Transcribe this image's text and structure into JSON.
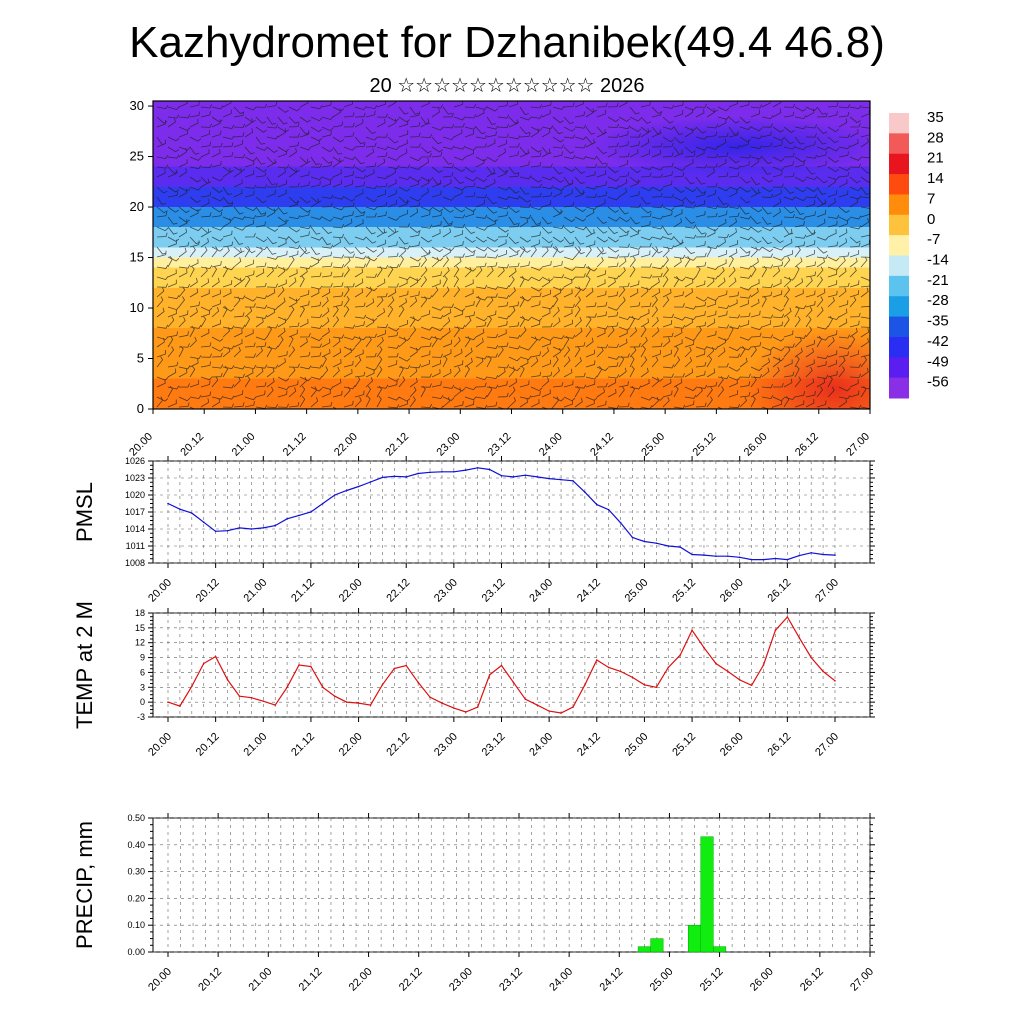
{
  "title": "Kazhydromet for Dzhanibek(49.4 46.8)",
  "subtitle": "20 ☆☆☆☆☆☆☆☆☆☆☆ 2026",
  "time_labels": [
    "20.00",
    "20.12",
    "21.00",
    "21.12",
    "22.00",
    "22.12",
    "23.00",
    "23.12",
    "24.00",
    "24.12",
    "25.00",
    "25.12",
    "26.00",
    "26.12",
    "27.00"
  ],
  "chart_data": [
    {
      "type": "heatmap",
      "title": "Temperature cross-section with wind barbs",
      "ylabel": "",
      "ylim": [
        0,
        30
      ],
      "yticks": [
        0,
        5,
        10,
        15,
        20,
        25,
        30
      ],
      "xlabels_ref": "time_labels",
      "colorbar_labels": [
        "35",
        "28",
        "21",
        "14",
        "7",
        "0",
        "-7",
        "-14",
        "-21",
        "-28",
        "-35",
        "-42",
        "-49",
        "-56"
      ],
      "colorbar_colors": [
        "#f9c8c8",
        "#f25a5a",
        "#e8141e",
        "#ff4a10",
        "#ff8c0a",
        "#ffc23c",
        "#fff2a8",
        "#c6eaf5",
        "#5cc3ef",
        "#1a9fe6",
        "#1c55e6",
        "#2a2df2",
        "#5a1ef0",
        "#8a2fe6"
      ],
      "layers": [
        {
          "ymin": 0,
          "ymax": 3,
          "color": "#ff7a10"
        },
        {
          "ymin": 3,
          "ymax": 8,
          "color": "#ff9a18"
        },
        {
          "ymin": 8,
          "ymax": 12,
          "color": "#ffb22a"
        },
        {
          "ymin": 12,
          "ymax": 14,
          "color": "#ffd450"
        },
        {
          "ymin": 14,
          "ymax": 15,
          "color": "#fff0a0"
        },
        {
          "ymin": 15,
          "ymax": 16,
          "color": "#d8f0f8"
        },
        {
          "ymin": 16,
          "ymax": 18,
          "color": "#7ccdf0"
        },
        {
          "ymin": 18,
          "ymax": 20,
          "color": "#2a8ee6"
        },
        {
          "ymin": 20,
          "ymax": 22,
          "color": "#2f3df0"
        },
        {
          "ymin": 22,
          "ymax": 24,
          "color": "#5a2cf0"
        },
        {
          "ymin": 24,
          "ymax": 30.5,
          "color": "#7d2cec"
        }
      ],
      "warm_spot": {
        "x": 13.3,
        "y": 2.0,
        "color": "#e8281e"
      },
      "cold_spot": {
        "x": 11.4,
        "y": 26.0,
        "color": "#2c24e8"
      }
    },
    {
      "type": "line",
      "ylabel": "PMSL",
      "ylim": [
        1008,
        1026
      ],
      "yticks": [
        1008,
        1011,
        1014,
        1017,
        1020,
        1023,
        1026
      ],
      "color": "#1010d8",
      "x": [
        0,
        0.25,
        0.5,
        0.75,
        1,
        1.25,
        1.5,
        1.75,
        2,
        2.25,
        2.5,
        2.75,
        3,
        3.25,
        3.5,
        3.75,
        4,
        4.25,
        4.5,
        4.75,
        5,
        5.25,
        5.5,
        5.75,
        6,
        6.25,
        6.5,
        6.75,
        7,
        7.25,
        7.5,
        7.75,
        8,
        8.25,
        8.5,
        8.75,
        9,
        9.25,
        9.5,
        9.75,
        10,
        10.25,
        10.5,
        10.75,
        11,
        11.25,
        11.5,
        11.75,
        12,
        12.25,
        12.5,
        12.75,
        13,
        13.25,
        13.5,
        13.75,
        14
      ],
      "values": [
        1018.5,
        1017.5,
        1016.8,
        1015.2,
        1013.6,
        1013.7,
        1014.2,
        1014.0,
        1014.2,
        1014.6,
        1015.8,
        1016.4,
        1017.0,
        1018.5,
        1020.0,
        1020.8,
        1021.5,
        1022.3,
        1023.1,
        1023.3,
        1023.2,
        1023.8,
        1024.0,
        1024.1,
        1024.1,
        1024.4,
        1024.8,
        1024.5,
        1023.4,
        1023.2,
        1023.5,
        1023.2,
        1022.9,
        1022.7,
        1022.5,
        1020.5,
        1018.3,
        1017.4,
        1015.1,
        1012.5,
        1011.8,
        1011.5,
        1011.0,
        1010.8,
        1009.5,
        1009.4,
        1009.2,
        1009.2,
        1009.0,
        1008.6,
        1008.6,
        1008.8,
        1008.6,
        1009.3,
        1009.8,
        1009.5,
        1009.4
      ]
    },
    {
      "type": "line",
      "ylabel": "TEMP at 2 M",
      "ylim": [
        -3,
        18
      ],
      "yticks": [
        -3,
        0,
        3,
        6,
        9,
        12,
        15,
        18
      ],
      "color": "#dd1010",
      "x": [
        0,
        0.25,
        0.5,
        0.75,
        1,
        1.25,
        1.5,
        1.75,
        2,
        2.25,
        2.5,
        2.75,
        3,
        3.25,
        3.5,
        3.75,
        4,
        4.25,
        4.5,
        4.75,
        5,
        5.25,
        5.5,
        5.75,
        6,
        6.25,
        6.5,
        6.75,
        7,
        7.25,
        7.5,
        7.75,
        8,
        8.25,
        8.5,
        8.75,
        9,
        9.25,
        9.5,
        9.75,
        10,
        10.25,
        10.5,
        10.75,
        11,
        11.25,
        11.5,
        11.75,
        12,
        12.25,
        12.5,
        12.75,
        13,
        13.25,
        13.5,
        13.75,
        14
      ],
      "values": [
        0.0,
        -0.8,
        3.2,
        7.8,
        9.2,
        4.5,
        1.2,
        0.9,
        0.2,
        -0.6,
        3.0,
        7.5,
        7.2,
        3.0,
        1.2,
        0.0,
        -0.2,
        -0.6,
        3.5,
        6.8,
        7.4,
        4.0,
        1.0,
        -0.2,
        -1.2,
        -2.0,
        -1.0,
        5.5,
        7.4,
        4.0,
        0.6,
        -0.6,
        -1.8,
        -2.2,
        -1.0,
        3.5,
        8.5,
        7.0,
        6.2,
        5.0,
        3.5,
        3.0,
        7.0,
        9.5,
        14.5,
        11.0,
        7.8,
        6.2,
        4.5,
        3.4,
        7.5,
        14.5,
        17.2,
        13.0,
        9.0,
        6.2,
        4.3
      ]
    },
    {
      "type": "bar",
      "ylabel": "PRECIP, mm",
      "ylim": [
        0,
        0.5
      ],
      "yticks": [
        "0.00",
        "0.10",
        "0.20",
        "0.30",
        "0.40",
        "0.50"
      ],
      "color": "#10ee10",
      "x": [
        9.5,
        9.75,
        10.5,
        10.75,
        11.0
      ],
      "values": [
        0.02,
        0.05,
        0.1,
        0.43,
        0.02
      ],
      "bar_width": 0.25
    }
  ]
}
